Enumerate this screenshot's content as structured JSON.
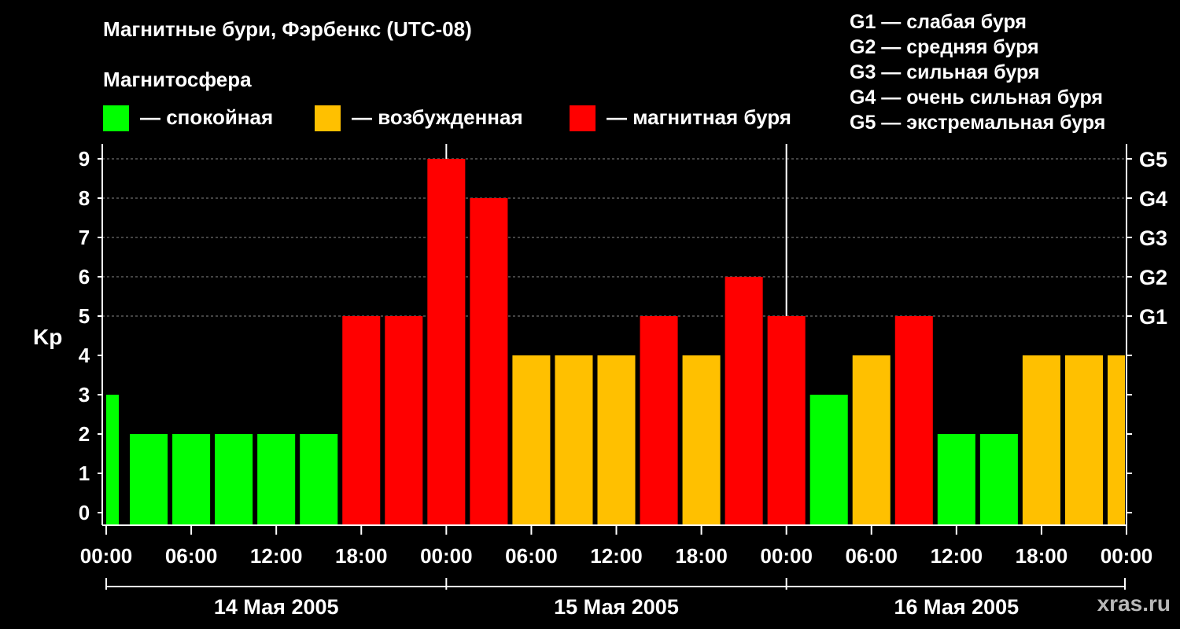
{
  "title": "Магнитные бури, Фэрбенкс (UTC-08)",
  "subtitle": "Магнитосфера",
  "legend": [
    {
      "color": "#00ff00",
      "label": "— спокойная"
    },
    {
      "color": "#ffc000",
      "label": "— возбужденная"
    },
    {
      "color": "#ff0000",
      "label": "— магнитная буря"
    }
  ],
  "storm_scale": [
    "G1 — слабая буря",
    "G2 — средняя буря",
    "G3 — сильная буря",
    "G4 — очень сильная буря",
    "G5 — экстремальная буря"
  ],
  "watermark": "xras.ru",
  "chart_data": {
    "type": "bar",
    "title": "Магнитные бури, Фэрбенкс (UTC-08)",
    "ylabel": "Kp",
    "ylim": [
      0,
      9
    ],
    "yticks": [
      "0",
      "1",
      "2",
      "3",
      "4",
      "5",
      "6",
      "7",
      "8",
      "9"
    ],
    "right_axis": [
      {
        "kp": 5,
        "label": "G1"
      },
      {
        "kp": 6,
        "label": "G2"
      },
      {
        "kp": 7,
        "label": "G3"
      },
      {
        "kp": 8,
        "label": "G4"
      },
      {
        "kp": 9,
        "label": "G5"
      }
    ],
    "x_tick_labels": [
      "00:00",
      "06:00",
      "12:00",
      "18:00",
      "00:00",
      "06:00",
      "12:00",
      "18:00",
      "00:00",
      "06:00",
      "12:00",
      "18:00",
      "00:00"
    ],
    "days": [
      "14 Мая 2005",
      "15 Мая 2005",
      "16 Мая 2005"
    ],
    "bar_hours": [
      0,
      3,
      6,
      9,
      12,
      15,
      18,
      21,
      24,
      27,
      30,
      33,
      36,
      39,
      42,
      45,
      48,
      51,
      54,
      57,
      60,
      63,
      66,
      69,
      72
    ],
    "values": [
      3,
      2,
      2,
      2,
      2,
      2,
      5,
      5,
      9,
      8,
      4,
      4,
      4,
      5,
      4,
      6,
      5,
      3,
      4,
      5,
      2,
      2,
      4,
      4,
      4
    ],
    "hours_total": 72,
    "colors": {
      "quiet": "#00ff00",
      "active": "#ffc000",
      "storm": "#ff0000"
    }
  }
}
